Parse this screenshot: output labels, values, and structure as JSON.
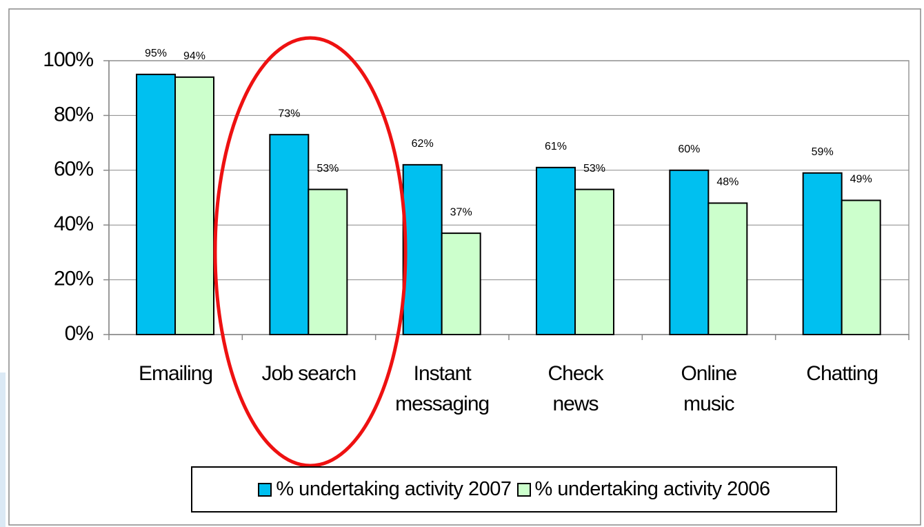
{
  "chart_data": {
    "type": "bar",
    "categories": [
      "Emailing",
      "Job search",
      "Instant\nmessaging",
      "Check\nnews",
      "Online\nmusic",
      "Chatting"
    ],
    "series": [
      {
        "name": "% undertaking activity 2007",
        "color": "#00c0f0",
        "values": [
          95,
          73,
          62,
          61,
          60,
          59
        ],
        "value_labels": [
          "95%",
          "73%",
          "62%",
          "61%",
          "60%",
          "59%"
        ]
      },
      {
        "name": "% undertaking activity 2006",
        "color": "#ccffcc",
        "values": [
          94,
          53,
          37,
          53,
          48,
          49
        ],
        "value_labels": [
          "94%",
          "53%",
          "37%",
          "53%",
          "48%",
          "49%"
        ]
      }
    ],
    "ylim": [
      0,
      100
    ],
    "yticks": [
      {
        "value": 0,
        "label": "0%"
      },
      {
        "value": 20,
        "label": "20%"
      },
      {
        "value": 40,
        "label": "40%"
      },
      {
        "value": 60,
        "label": "60%"
      },
      {
        "value": 80,
        "label": "80%"
      },
      {
        "value": 100,
        "label": "100%"
      }
    ],
    "grid": true
  }
}
